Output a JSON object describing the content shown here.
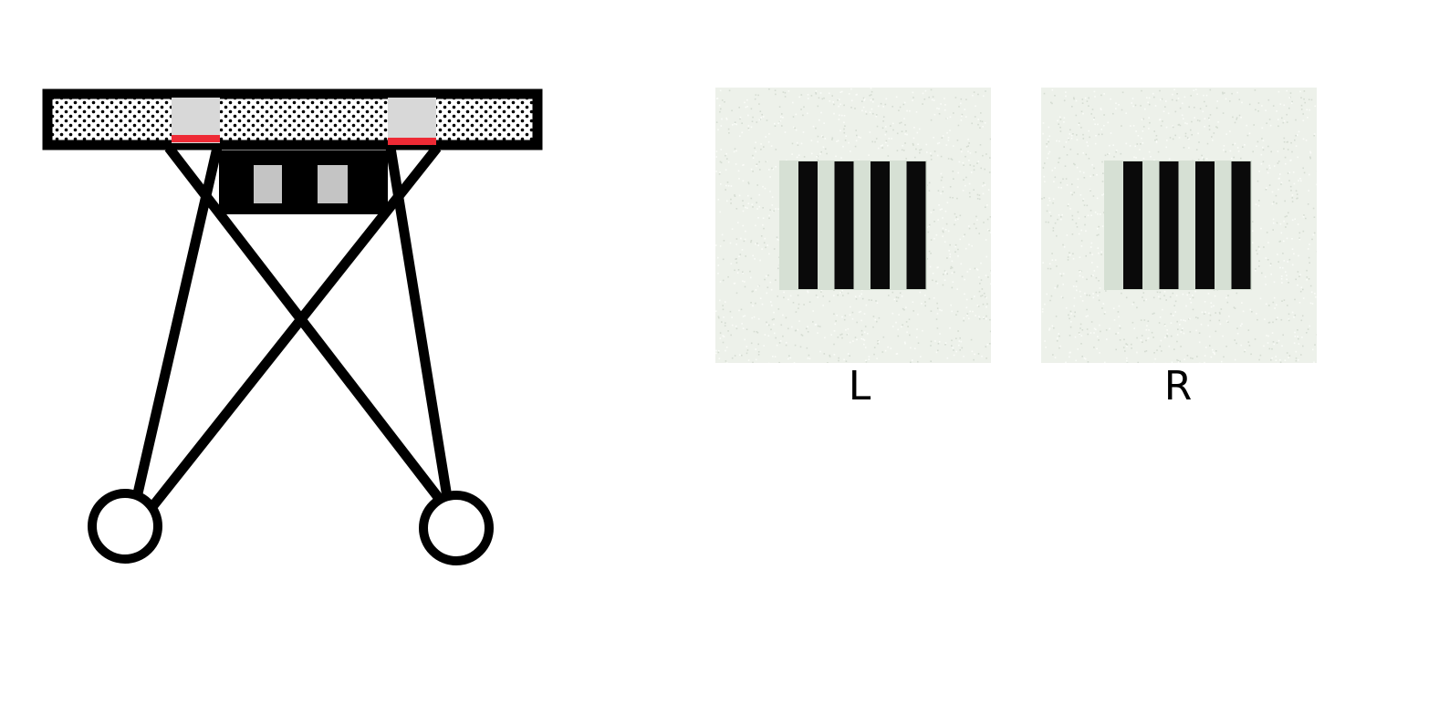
{
  "panels": [
    {
      "label": "L",
      "bar_count": 4
    },
    {
      "label": "R",
      "bar_count": 4
    }
  ],
  "colors": {
    "ink": "#000000",
    "accent_red": "#ee2a35",
    "window_gray": "#d8d8d8",
    "lens_gray": "#c4c4c4",
    "noise_background": "#edf1ea",
    "grating_field": "#d6e0d4",
    "grating_bar": "#0a0a0a"
  }
}
